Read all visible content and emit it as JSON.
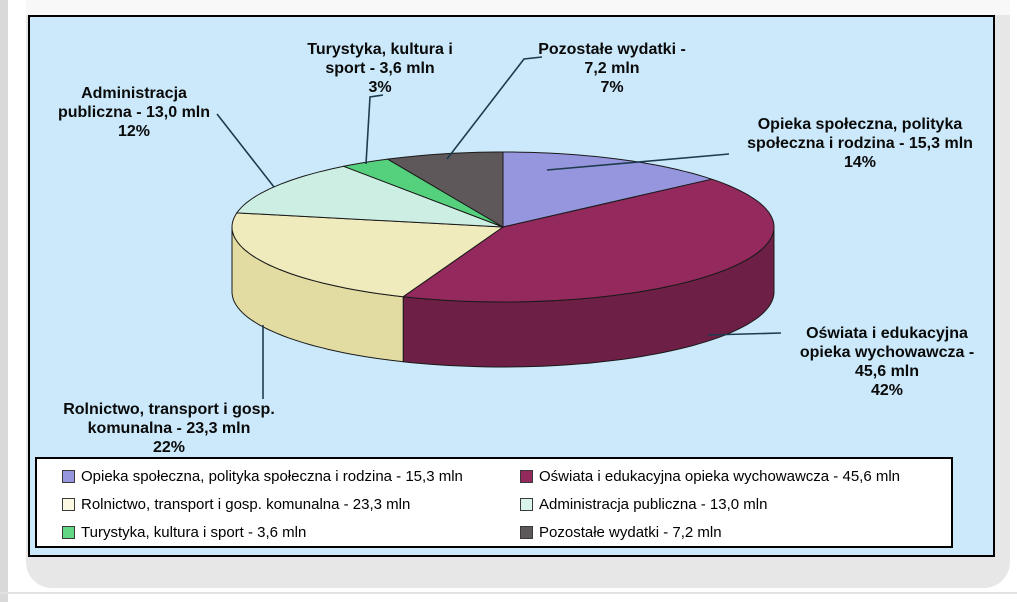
{
  "panel": {
    "background_color": "#cbe9fa",
    "border_color": "#000000"
  },
  "chart_data": {
    "type": "pie",
    "style": "3d",
    "unit": "mln",
    "legend_position": "bottom",
    "slices": [
      {
        "label": "Opieka społeczna, polityka społeczna i rodzina",
        "value_mln": "15,3",
        "value": 15.3,
        "pct": 14,
        "color": "#9596DE",
        "side_color": "#6f71b5"
      },
      {
        "label": "Oświata i edukacyjna opieka wychowawcza",
        "value_mln": "45,6",
        "value": 45.6,
        "pct": 42,
        "color": "#93295C",
        "side_color": "#6E1F45"
      },
      {
        "label": "Rolnictwo, transport i gosp. komunalna",
        "value_mln": "23,3",
        "value": 23.3,
        "pct": 22,
        "color": "#EFEBBD",
        "side_color": "#E2DCA3"
      },
      {
        "label": "Administracja publiczna",
        "value_mln": "13,0",
        "value": 13.0,
        "pct": 12,
        "color": "#CDEEE2",
        "side_color": "#9fc8bb"
      },
      {
        "label": "Turystyka, kultura i sport",
        "value_mln": "3,6",
        "value": 3.6,
        "pct": 3,
        "color": "#55D17D",
        "side_color": "#3da35f"
      },
      {
        "label": "Pozostałe wydatki",
        "value_mln": "7,2",
        "value": 7.2,
        "pct": 7,
        "color": "#5F585B",
        "side_color": "#464042"
      }
    ],
    "callouts": [
      {
        "lines": [
          "Administracja",
          "publiczna - 13,0 mln",
          "12%"
        ]
      },
      {
        "lines": [
          "Turystyka, kultura i",
          "sport - 3,6 mln",
          "3%"
        ]
      },
      {
        "lines": [
          "Pozostałe wydatki  -",
          "7,2 mln",
          "7%"
        ]
      },
      {
        "lines": [
          "Opieka społeczna, polityka",
          "społeczna i rodzina - 15,3 mln",
          "14%"
        ]
      },
      {
        "lines": [
          "Oświata i edukacyjna",
          "opieka wychowawcza -",
          "45,6 mln",
          "42%"
        ]
      },
      {
        "lines": [
          "Rolnictwo, transport i gosp.",
          "komunalna - 23,3 mln",
          "22%"
        ]
      }
    ]
  },
  "legend": {
    "columns": [
      [
        {
          "text": "Opieka społeczna, polityka społeczna i rodzina - 15,3 mln",
          "color": "#9596DE"
        },
        {
          "text": "Rolnictwo, transport i gosp. komunalna - 23,3 mln",
          "color": "#FBF9E2"
        },
        {
          "text": "Turystyka, kultura i sport - 3,6 mln",
          "color": "#63D784"
        }
      ],
      [
        {
          "text": "Oświata i edukacyjna opieka wychowawcza - 45,6 mln",
          "color": "#93295C"
        },
        {
          "text": "Administracja publiczna - 13,0 mln",
          "color": "#D9F4EB"
        },
        {
          "text": "Pozostałe wydatki  - 7,2 mln",
          "color": "#5F585B"
        }
      ]
    ]
  }
}
